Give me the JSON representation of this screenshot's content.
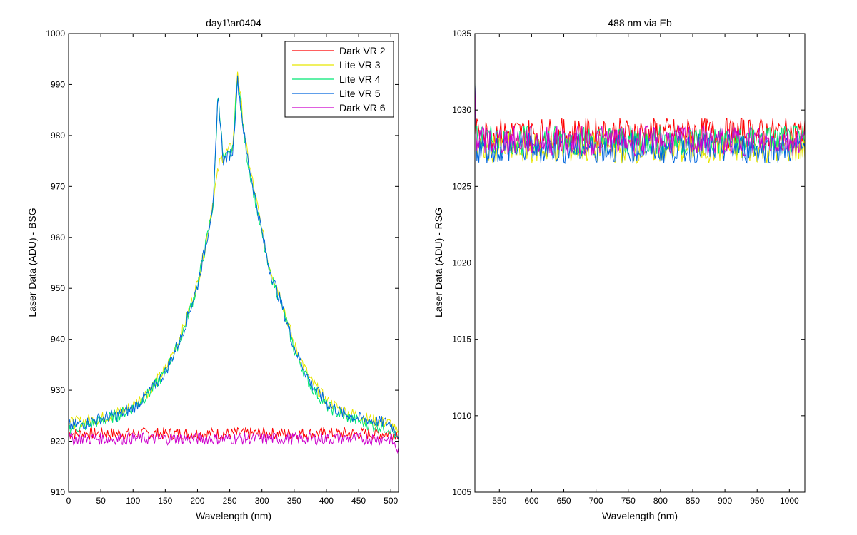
{
  "window": {
    "background": "#ffffff"
  },
  "chart_data": [
    {
      "type": "line",
      "title": "day1\\ar0404",
      "xlabel": "Wavelength (nm)",
      "ylabel": "Laser Data (ADU) - BSG",
      "xlim": [
        0,
        512
      ],
      "ylim": [
        910,
        1000
      ],
      "xticks": [
        0,
        50,
        100,
        150,
        200,
        250,
        300,
        350,
        400,
        450,
        500
      ],
      "yticks": [
        910,
        920,
        930,
        940,
        950,
        960,
        970,
        980,
        990,
        1000
      ],
      "grid": false,
      "legend_position": "top-right",
      "series": [
        {
          "name": "Dark VR 2",
          "color": "#ff0000",
          "x": [
            0,
            50,
            100,
            150,
            200,
            250,
            300,
            350,
            400,
            450,
            500,
            512
          ],
          "y": [
            921.5,
            921.5,
            921.5,
            921.5,
            921.5,
            921.5,
            921.5,
            921.5,
            921.5,
            921.5,
            921.5,
            921.5
          ]
        },
        {
          "name": "Lite VR 3",
          "color": "#e6e600",
          "x": [
            0,
            25,
            50,
            75,
            100,
            125,
            150,
            175,
            200,
            215,
            225,
            235,
            240,
            255,
            262,
            275,
            290,
            310,
            330,
            350,
            375,
            400,
            425,
            450,
            475,
            500,
            512
          ],
          "y": [
            923.5,
            924,
            924.5,
            925.5,
            927,
            930,
            934,
            941,
            951,
            960,
            968,
            975,
            976,
            978,
            993,
            978,
            968,
            955,
            948,
            939,
            932,
            928,
            926,
            925,
            924,
            923.5,
            921
          ]
        },
        {
          "name": "Lite VR 4",
          "color": "#00e673",
          "x": [
            0,
            25,
            50,
            75,
            100,
            125,
            150,
            175,
            200,
            215,
            225,
            232,
            240,
            255,
            262,
            275,
            290,
            310,
            330,
            350,
            375,
            400,
            425,
            450,
            475,
            500,
            512
          ],
          "y": [
            922.5,
            923,
            924,
            925,
            926.5,
            929.5,
            933.5,
            940.5,
            950.5,
            960,
            967,
            989,
            975,
            977,
            992,
            977,
            967,
            954,
            947,
            938,
            931,
            927,
            925,
            924,
            923,
            922.5,
            920
          ]
        },
        {
          "name": "Lite VR 5",
          "color": "#0066dd",
          "x": [
            0,
            25,
            50,
            75,
            100,
            125,
            150,
            175,
            200,
            215,
            225,
            232,
            240,
            255,
            262,
            275,
            290,
            310,
            330,
            350,
            375,
            400,
            425,
            450,
            475,
            500,
            512
          ],
          "y": [
            923,
            923.5,
            924.5,
            925,
            926.5,
            929.5,
            933.5,
            940.5,
            950.5,
            960,
            967.5,
            988,
            975,
            977,
            991,
            977.5,
            967.5,
            954.5,
            947,
            938.5,
            931.5,
            927.5,
            925.5,
            924.5,
            924,
            923.5,
            921
          ]
        },
        {
          "name": "Dark VR 6",
          "color": "#cc00cc",
          "x": [
            0,
            50,
            100,
            150,
            200,
            250,
            300,
            350,
            400,
            450,
            500,
            512
          ],
          "y": [
            920.5,
            920.5,
            920.5,
            920.5,
            920.5,
            920.5,
            920.5,
            920.5,
            920.5,
            920.5,
            920.5,
            918
          ]
        }
      ]
    },
    {
      "type": "line",
      "title": "488 nm via Eb",
      "xlabel": "Wavelength (nm)",
      "ylabel": "Laser Data (ADU) - RSG",
      "xlim": [
        512,
        1024
      ],
      "ylim": [
        1005,
        1035
      ],
      "xticks": [
        550,
        600,
        650,
        700,
        750,
        800,
        850,
        900,
        950,
        1000
      ],
      "yticks": [
        1005,
        1010,
        1015,
        1020,
        1025,
        1030,
        1035
      ],
      "grid": false,
      "series": [
        {
          "name": "Dark VR 2",
          "color": "#ff0000",
          "x": [
            512,
            515,
            1024
          ],
          "y": [
            1030,
            1028.5,
            1028.5
          ]
        },
        {
          "name": "Lite VR 3",
          "color": "#e6e600",
          "x": [
            512,
            515,
            1024
          ],
          "y": [
            1031,
            1027.5,
            1027.5
          ]
        },
        {
          "name": "Lite VR 4",
          "color": "#00e673",
          "x": [
            512,
            515,
            1024
          ],
          "y": [
            1031,
            1028,
            1028
          ]
        },
        {
          "name": "Lite VR 5",
          "color": "#0066dd",
          "x": [
            512,
            515,
            1024
          ],
          "y": [
            1031,
            1027.5,
            1027.5
          ]
        },
        {
          "name": "Dark VR 6",
          "color": "#cc00cc",
          "x": [
            512,
            515,
            1024
          ],
          "y": [
            1032,
            1028,
            1028
          ]
        }
      ]
    }
  ]
}
